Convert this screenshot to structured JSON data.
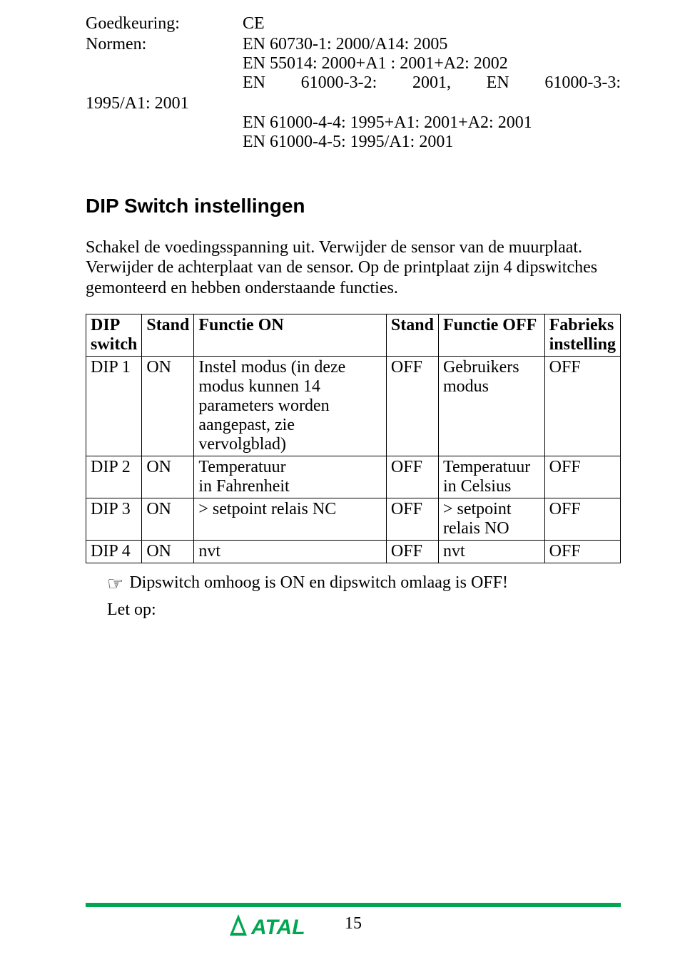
{
  "specs": {
    "approval_label": "Goedkeuring:",
    "approval_value": "CE",
    "norms_label": "Normen:",
    "norms_lines": [
      "EN 60730-1: 2000/A14: 2005",
      "EN 55014: 2000+A1 : 2001+A2: 2002",
      "EN  61000-3-2:  2001,  EN  61000-3-3:"
    ],
    "year_1995": "1995/A1: 2001",
    "norms_cont": [
      "EN 61000-4-4: 1995+A1: 2001+A2: 2001",
      "EN 61000-4-5: 1995/A1: 2001"
    ]
  },
  "heading": "DIP Switch instellingen",
  "intro": "Schakel de voedingsspanning uit. Verwijder de sensor van de muurplaat. Verwijder de achterplaat van de sensor. Op de printplaat zijn 4 dipswitches gemonteerd en hebben onderstaande functies.",
  "table": {
    "headers": {
      "c1a": "DIP",
      "c1b": "switch",
      "c2": "Stand",
      "c3": "Functie ON",
      "c4": "Stand",
      "c5": "Functie OFF",
      "c6a": "Fabrieks",
      "c6b": "instelling"
    },
    "rows": [
      {
        "c1": "DIP 1",
        "c2": "ON",
        "c3": "Instel modus (in deze modus kunnen 14 parameters worden aangepast, zie vervolgblad)",
        "c4": "OFF",
        "c5": "Gebruikers modus",
        "c6": "OFF"
      },
      {
        "c1": "DIP 2",
        "c2": "ON",
        "c3": "Temperatuur\nin Fahrenheit",
        "c4": "OFF",
        "c5": "Temperatuur\nin Celsius",
        "c6": "OFF"
      },
      {
        "c1": "DIP 3",
        "c2": "ON",
        "c3": "> setpoint relais NC",
        "c4": "OFF",
        "c5": "> setpoint relais NO",
        "c6": "OFF"
      },
      {
        "c1": "DIP 4",
        "c2": "ON",
        "c3": "nvt",
        "c4": "OFF",
        "c5": "nvt",
        "c6": "OFF"
      }
    ]
  },
  "note_icon": "☞",
  "note_text": "Dipswitch omhoog is ON en dipswitch omlaag is OFF!",
  "letop": "Let op:",
  "logo_text": "ATAL",
  "page_number": "15",
  "colors": {
    "green": "#00a651",
    "black": "#000000",
    "white": "#ffffff"
  }
}
